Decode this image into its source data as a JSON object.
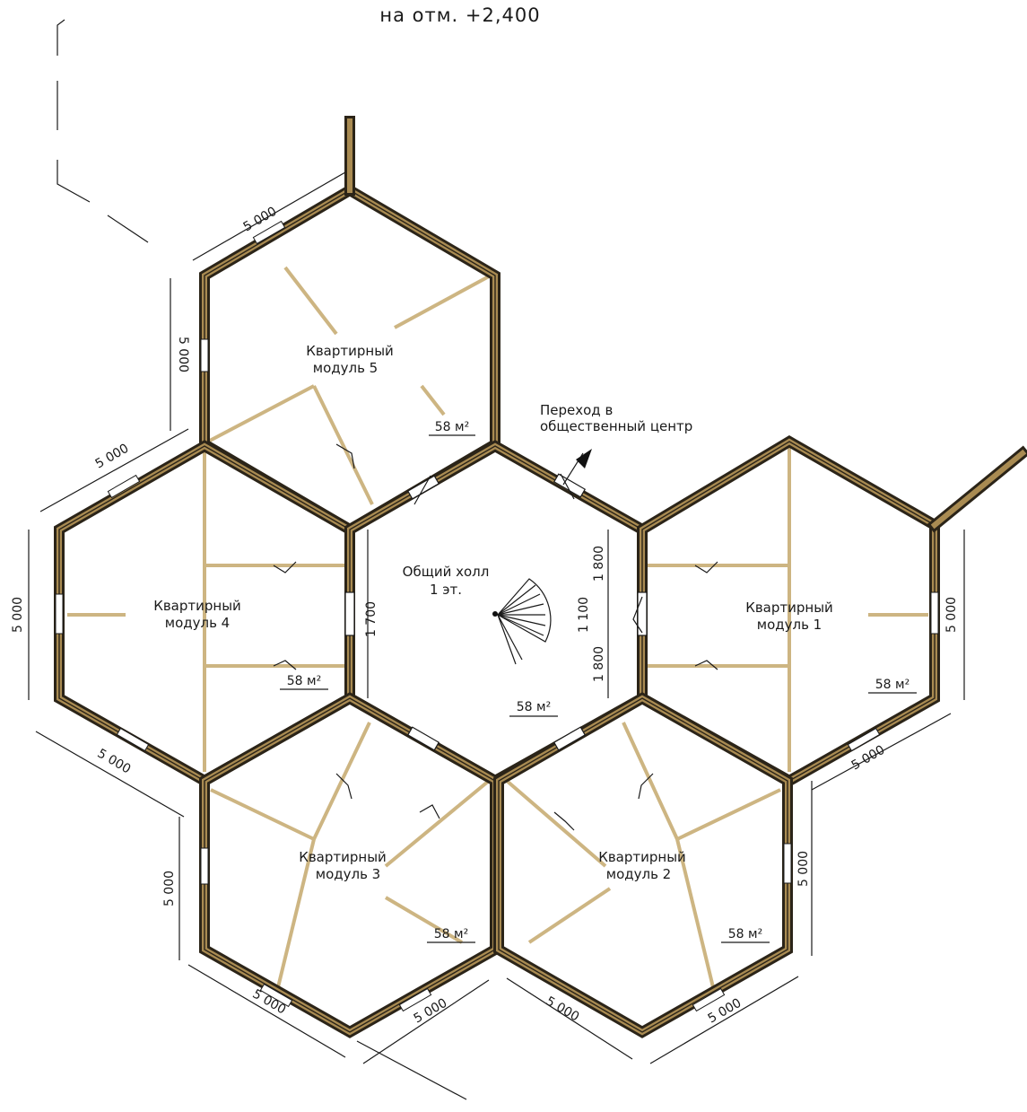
{
  "title": "на отм. +2,400",
  "hall": {
    "label_line1": "Общий холл",
    "label_line2": "1 эт.",
    "area": "58 м²"
  },
  "passage": {
    "line1": "Переход в",
    "line2": "общественный центр"
  },
  "modules": [
    {
      "id": 1,
      "line1": "Квартирный",
      "line2": "модуль 1",
      "area": "58 м²"
    },
    {
      "id": 2,
      "line1": "Квартирный",
      "line2": "модуль 2",
      "area": "58 м²"
    },
    {
      "id": 3,
      "line1": "Квартирный",
      "line2": "модуль 3",
      "area": "58 м²"
    },
    {
      "id": 4,
      "line1": "Квартирный",
      "line2": "модуль 4",
      "area": "58 м²"
    },
    {
      "id": 5,
      "line1": "Квартирный",
      "line2": "модуль 5",
      "area": "58 м²"
    }
  ],
  "dimensions": {
    "side": "5 000",
    "opening": "1 700",
    "right_top": "1 800",
    "right_mid": "1 100",
    "right_bottom": "1 800"
  },
  "colors": {
    "wall_dark": "#2b2418",
    "wall_light": "#a98b52",
    "partition": "#cdb582"
  }
}
